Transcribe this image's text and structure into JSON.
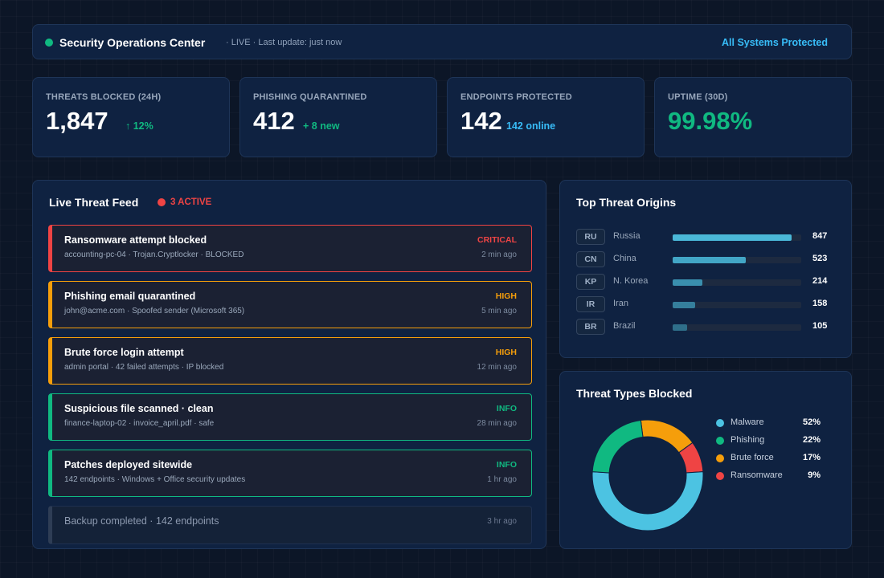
{
  "header": {
    "title": "Security Operations Center",
    "status": "· LIVE · Last update: just now",
    "protected": "All Systems Protected",
    "live_color": "#10b981"
  },
  "stats": [
    {
      "label": "THREATS BLOCKED (24H)",
      "value": "1,847",
      "delta": "↑ 12%",
      "delta_color": "#10b981"
    },
    {
      "label": "PHISHING QUARANTINED",
      "value": "412",
      "delta": "+ 8 new",
      "delta_color": "#10b981"
    },
    {
      "label": "ENDPOINTS PROTECTED",
      "value": "142",
      "delta": "142 online",
      "delta_color": "#38bdf8"
    },
    {
      "label": "UPTIME (30D)",
      "value": "99.98%",
      "value_color": "#10b981"
    }
  ],
  "feed": {
    "title": "Live Threat Feed",
    "active_label": "3 ACTIVE",
    "items": [
      {
        "title": "Ransomware attempt blocked",
        "subtitle": "accounting-pc-04 · Trojan.Cryptlocker · BLOCKED",
        "severity": "CRITICAL",
        "time": "2 min ago",
        "color": "#ef4444"
      },
      {
        "title": "Phishing email quarantined",
        "subtitle": "john@acme.com · Spoofed sender (Microsoft 365)",
        "severity": "HIGH",
        "time": "5 min ago",
        "color": "#f59e0b"
      },
      {
        "title": "Brute force login attempt",
        "subtitle": "admin portal · 42 failed attempts · IP blocked",
        "severity": "HIGH",
        "time": "12 min ago",
        "color": "#f59e0b"
      },
      {
        "title": "Suspicious file scanned · clean",
        "subtitle": "finance-laptop-02 · invoice_april.pdf · safe",
        "severity": "INFO",
        "time": "28 min ago",
        "color": "#10b981"
      },
      {
        "title": "Patches deployed sitewide",
        "subtitle": "142 endpoints · Windows + Office security updates",
        "severity": "INFO",
        "time": "1 hr ago",
        "color": "#10b981"
      },
      {
        "title": "Backup completed · 142 endpoints",
        "time": "3 hr ago"
      }
    ]
  },
  "origins": {
    "title": "Top Threat Origins",
    "max": 847,
    "items": [
      {
        "code": "RU",
        "name": "Russia",
        "count": "847",
        "value": 847,
        "color": "#4ab8d8"
      },
      {
        "code": "CN",
        "name": "China",
        "count": "523",
        "value": 523,
        "color": "#42a6c6"
      },
      {
        "code": "KP",
        "name": "N. Korea",
        "count": "214",
        "value": 214,
        "color": "#3a8fae"
      },
      {
        "code": "IR",
        "name": "Iran",
        "count": "158",
        "value": 158,
        "color": "#357f9c"
      },
      {
        "code": "BR",
        "name": "Brazil",
        "count": "105",
        "value": 105,
        "color": "#2f6f8a"
      }
    ]
  },
  "types": {
    "title": "Threat Types Blocked",
    "items": [
      {
        "label": "Malware",
        "pct": "52%",
        "value": 52,
        "color": "#4cc3e2"
      },
      {
        "label": "Phishing",
        "pct": "22%",
        "value": 22,
        "color": "#10b981"
      },
      {
        "label": "Brute force",
        "pct": "17%",
        "value": 17,
        "color": "#f59e0b"
      },
      {
        "label": "Ransomware",
        "pct": "9%",
        "value": 9,
        "color": "#ef4444"
      }
    ]
  }
}
